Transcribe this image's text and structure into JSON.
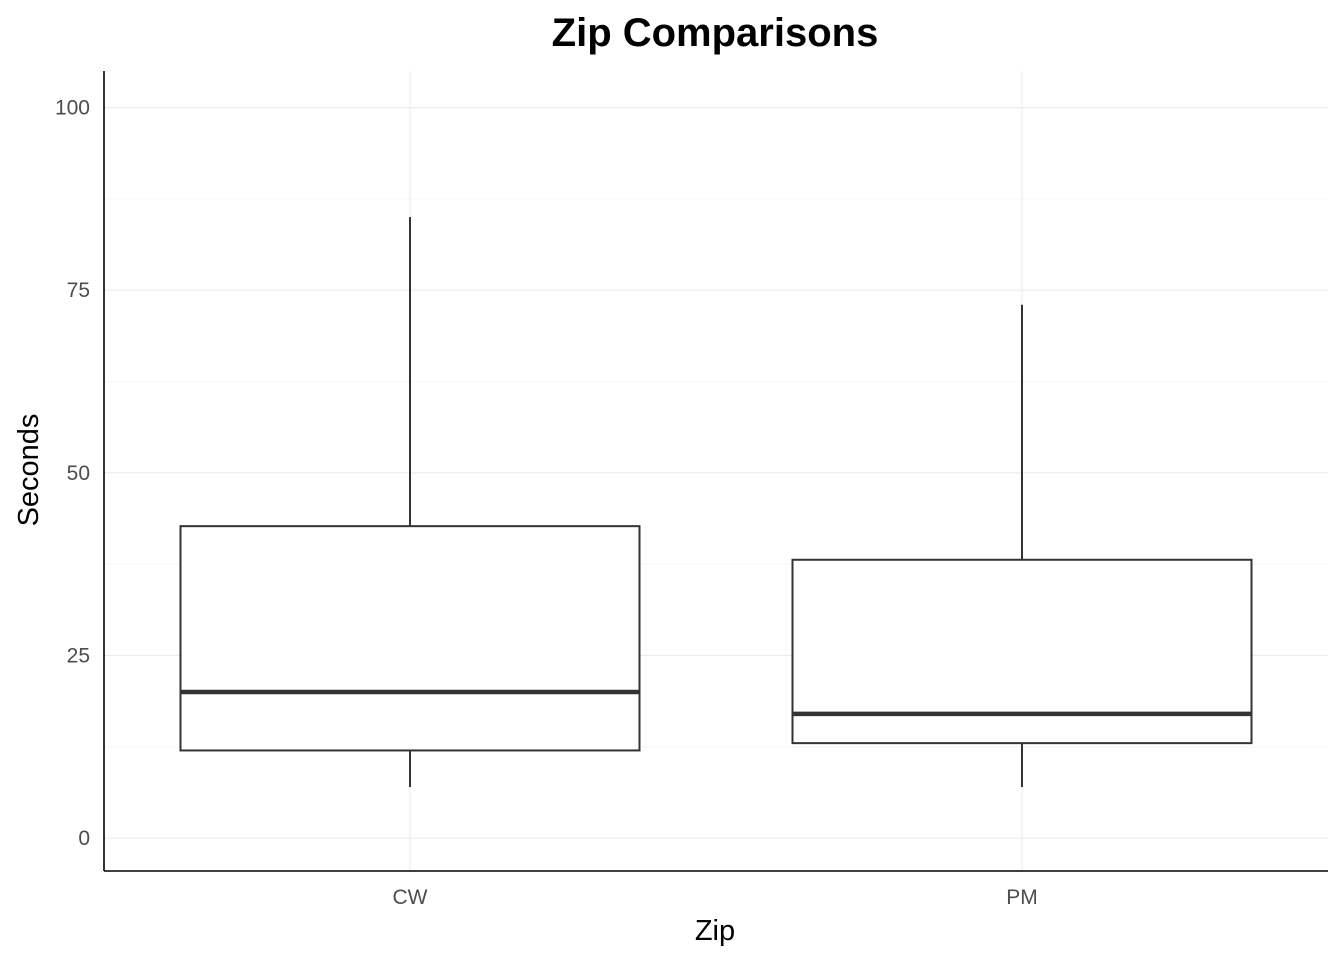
{
  "chart_data": {
    "type": "box",
    "title": "Zip Comparisons",
    "xlabel": "Zip",
    "ylabel": "Seconds",
    "categories": [
      "CW",
      "PM"
    ],
    "ylim": [
      -4.5,
      105
    ],
    "yticks": [
      0,
      25,
      50,
      75,
      100
    ],
    "yticks_minor": [
      12.5,
      37.5,
      62.5,
      87.5
    ],
    "grid": true,
    "legend": "none",
    "boxes": [
      {
        "category": "CW",
        "whisker_low": 7,
        "q1": 12,
        "median": 20,
        "q3": 42.7,
        "whisker_high": 85
      },
      {
        "category": "PM",
        "whisker_low": 7,
        "q1": 13,
        "median": 17,
        "q3": 38.1,
        "whisker_high": 73
      }
    ]
  }
}
